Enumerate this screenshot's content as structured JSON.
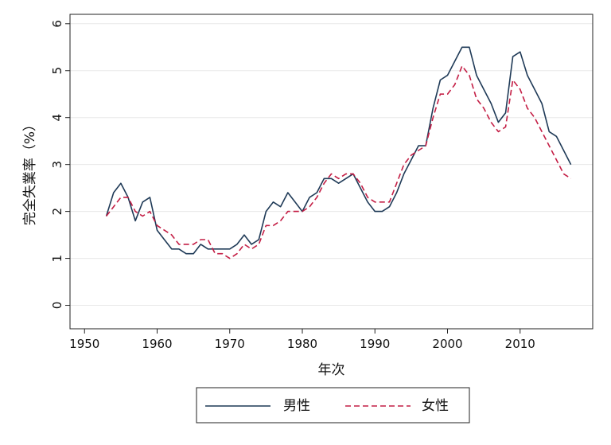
{
  "chart_data": {
    "type": "line",
    "title": "",
    "xlabel": "年次",
    "ylabel": "完全失業率（%）",
    "xlim": [
      1948,
      2020
    ],
    "ylim": [
      -0.5,
      6.2
    ],
    "x_ticks": [
      1950,
      1960,
      1970,
      1980,
      1990,
      2000,
      2010
    ],
    "y_ticks": [
      0,
      1,
      2,
      3,
      4,
      5,
      6
    ],
    "grid": "horizontal",
    "legend_position": "bottom",
    "colors": {
      "male": "#1f3a57",
      "female": "#c41e45"
    },
    "x": [
      1953,
      1954,
      1955,
      1956,
      1957,
      1958,
      1959,
      1960,
      1961,
      1962,
      1963,
      1964,
      1965,
      1966,
      1967,
      1968,
      1969,
      1970,
      1971,
      1972,
      1973,
      1974,
      1975,
      1976,
      1977,
      1978,
      1979,
      1980,
      1981,
      1982,
      1983,
      1984,
      1985,
      1986,
      1987,
      1988,
      1989,
      1990,
      1991,
      1992,
      1993,
      1994,
      1995,
      1996,
      1997,
      1998,
      1999,
      2000,
      2001,
      2002,
      2003,
      2004,
      2005,
      2006,
      2007,
      2008,
      2009,
      2010,
      2011,
      2012,
      2013,
      2014,
      2015,
      2016,
      2017
    ],
    "series": [
      {
        "name": "男性",
        "style": "solid",
        "values": [
          1.9,
          2.4,
          2.6,
          2.3,
          1.8,
          2.2,
          2.3,
          1.6,
          1.4,
          1.2,
          1.2,
          1.1,
          1.1,
          1.3,
          1.2,
          1.2,
          1.2,
          1.2,
          1.3,
          1.5,
          1.3,
          1.4,
          2.0,
          2.2,
          2.1,
          2.4,
          2.2,
          2.0,
          2.3,
          2.4,
          2.7,
          2.7,
          2.6,
          2.7,
          2.8,
          2.5,
          2.2,
          2.0,
          2.0,
          2.1,
          2.4,
          2.8,
          3.1,
          3.4,
          3.4,
          4.2,
          4.8,
          4.9,
          5.2,
          5.5,
          5.5,
          4.9,
          4.6,
          4.3,
          3.9,
          4.1,
          5.3,
          5.4,
          4.9,
          4.6,
          4.3,
          3.7,
          3.6,
          3.3,
          3.0
        ]
      },
      {
        "name": "女性",
        "style": "dashed",
        "values": [
          1.9,
          2.1,
          2.3,
          2.3,
          2.0,
          1.9,
          2.0,
          1.7,
          1.6,
          1.5,
          1.3,
          1.3,
          1.3,
          1.4,
          1.4,
          1.1,
          1.1,
          1.0,
          1.1,
          1.3,
          1.2,
          1.3,
          1.7,
          1.7,
          1.8,
          2.0,
          2.0,
          2.0,
          2.1,
          2.3,
          2.6,
          2.8,
          2.7,
          2.8,
          2.8,
          2.6,
          2.3,
          2.2,
          2.2,
          2.2,
          2.6,
          3.0,
          3.2,
          3.3,
          3.4,
          4.0,
          4.5,
          4.5,
          4.7,
          5.1,
          4.9,
          4.4,
          4.2,
          3.9,
          3.7,
          3.8,
          4.8,
          4.6,
          4.2,
          4.0,
          3.7,
          3.4,
          3.1,
          2.8,
          2.7
        ]
      }
    ]
  }
}
